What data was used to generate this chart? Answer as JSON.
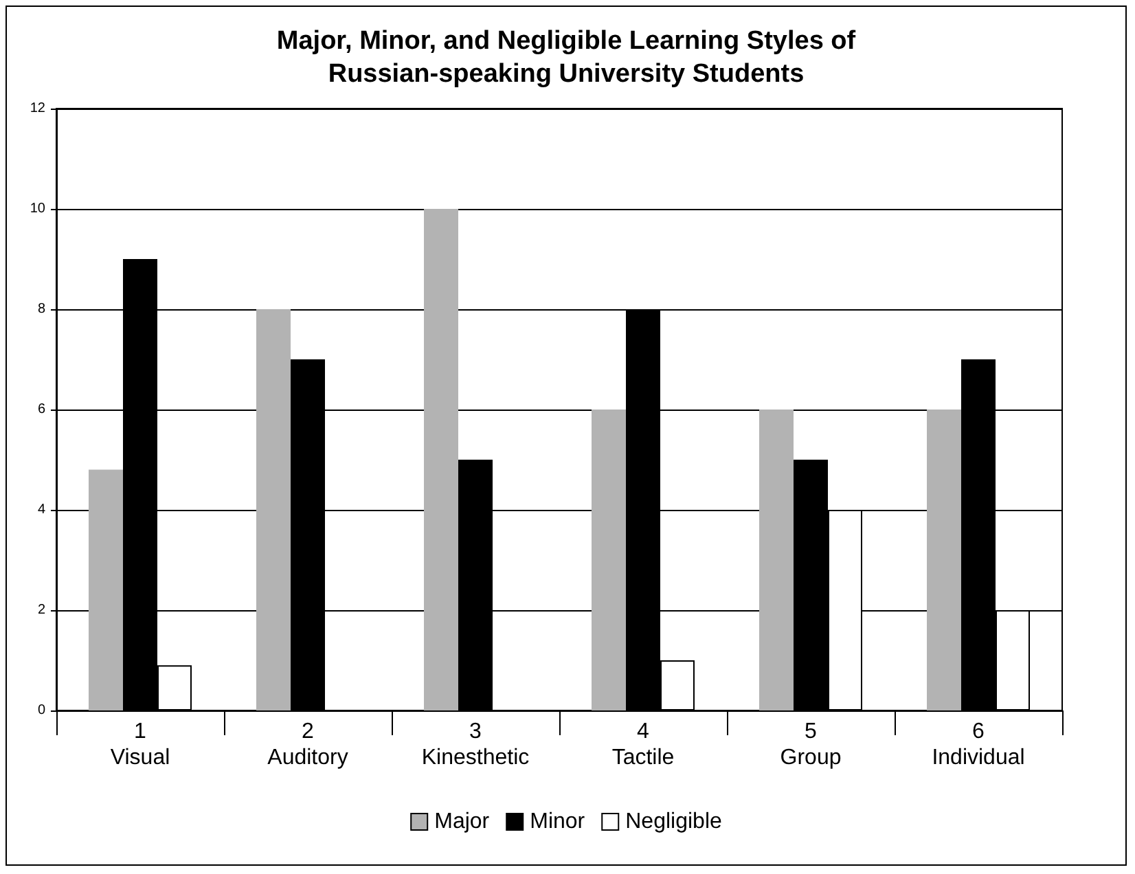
{
  "chart_data": {
    "type": "bar",
    "title": "Major, Minor, and Negligible Learning Styles of\nRussian-speaking University Students",
    "categories": [
      "1\nVisual",
      "2\nAuditory",
      "3\nKinesthetic",
      "4\nTactile",
      "5\nGroup",
      "6\nIndividual"
    ],
    "series": [
      {
        "name": "Major",
        "color": "#b3b3b3",
        "values": [
          4.8,
          8,
          10,
          6,
          6,
          6
        ]
      },
      {
        "name": "Minor",
        "color": "#000000",
        "values": [
          9,
          7,
          5,
          8,
          5,
          7
        ]
      },
      {
        "name": "Negligible",
        "color": "#ffffff",
        "values": [
          0.9,
          0,
          0,
          1,
          4,
          2
        ]
      }
    ],
    "ylim": [
      0,
      12
    ],
    "yticks": [
      0,
      2,
      4,
      6,
      8,
      10,
      12
    ],
    "grid": "y",
    "legend": "bottom"
  }
}
